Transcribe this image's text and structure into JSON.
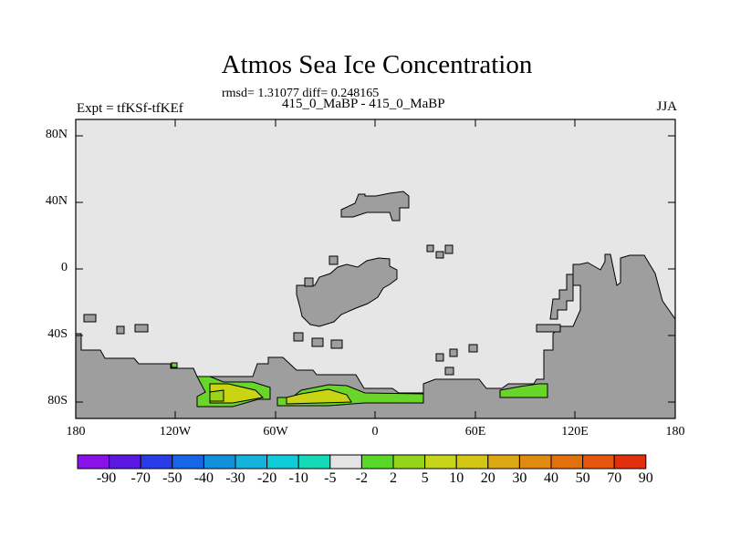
{
  "title": "Atmos Sea Ice Concentration",
  "stats": "rmsd= 1.31077 diff= 0.248165",
  "case_label": "415_0_MaBP - 415_0_MaBP",
  "expt_label": "Expt = tfKSf-tfKEf",
  "season": "JJA",
  "colors": {
    "ocean": "#e6e6e6",
    "land": "#9e9e9e",
    "coast": "#000000",
    "pos5": "#69d42a",
    "pos10": "#9ad41a",
    "pos20": "#c8d414"
  },
  "map": {
    "projection": "cylindrical equidistant",
    "lon_range": [
      -180,
      180
    ],
    "lat_range": [
      -90,
      90
    ],
    "x_ticks": [
      "180",
      "120W",
      "60W",
      "0",
      "60E",
      "120E",
      "180"
    ],
    "y_ticks": [
      "80N",
      "40N",
      "0",
      "40S",
      "80S"
    ]
  },
  "colorbar": {
    "colors": [
      "#8a12e8",
      "#5a18e0",
      "#2a3ce8",
      "#1666e6",
      "#1290dc",
      "#14b2dc",
      "#10ccd8",
      "#14dab8",
      "#e4e4e4",
      "#5ad82a",
      "#94d41a",
      "#c6d41a",
      "#d4c614",
      "#dca814",
      "#e08a10",
      "#e2700c",
      "#e4560c",
      "#e0300c"
    ],
    "labels": [
      "-90",
      "-70",
      "-50",
      "-40",
      "-30",
      "-20",
      "-10",
      "-5",
      "-2",
      "2",
      "5",
      "10",
      "20",
      "30",
      "40",
      "50",
      "70",
      "90"
    ]
  }
}
